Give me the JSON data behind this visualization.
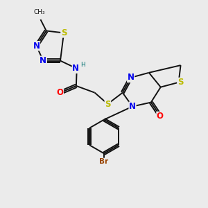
{
  "background_color": "#ebebeb",
  "atom_colors": {
    "N": "#0000ee",
    "S": "#bbbb00",
    "O": "#ff0000",
    "Br": "#994400",
    "H": "#007070",
    "C": "#111111"
  },
  "figsize": [
    3.0,
    3.0
  ],
  "dpi": 100,
  "lw": 1.4,
  "fs": 8.5
}
